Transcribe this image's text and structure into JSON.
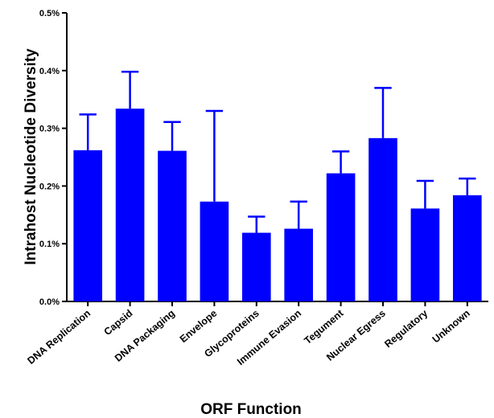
{
  "chart_data": {
    "type": "bar",
    "title": "",
    "xlabel": "ORF Function",
    "ylabel": "Intrahost Nucleotide Diversity",
    "categories": [
      "DNA Replication",
      "Capsid",
      "DNA Packaging",
      "Envelope",
      "Glycoproteins",
      "Immune Evasion",
      "Tegument",
      "Nuclear Egress",
      "Regulatory",
      "Unknown"
    ],
    "values": [
      0.262,
      0.334,
      0.261,
      0.173,
      0.119,
      0.126,
      0.222,
      0.283,
      0.161,
      0.184
    ],
    "error_upper": [
      0.324,
      0.398,
      0.311,
      0.33,
      0.147,
      0.173,
      0.26,
      0.37,
      0.209,
      0.213
    ],
    "ylim": [
      0,
      0.5
    ],
    "yticks": [
      0.0,
      0.1,
      0.2,
      0.3,
      0.4,
      0.5
    ],
    "ytick_labels": [
      "0.0%",
      "0.1%",
      "0.2%",
      "0.3%",
      "0.4%",
      "0.5%"
    ],
    "bar_color": "#0000ff",
    "grid": false,
    "legend": "none"
  }
}
